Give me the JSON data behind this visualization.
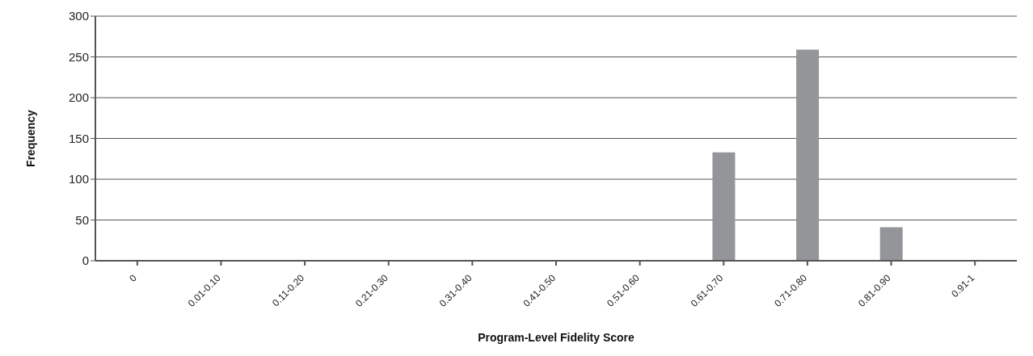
{
  "chart_data": {
    "type": "bar",
    "xlabel": "Program-Level Fidelity Score",
    "ylabel": "Frequency",
    "categories": [
      "0",
      "0.01-0.10",
      "0.11-0.20",
      "0.21-0.30",
      "0.31-0.40",
      "0.41-0.50",
      "0.51-0.60",
      "0.61-0.70",
      "0.71-0.80",
      "0.81-0.90",
      "0.91-1"
    ],
    "values": [
      0,
      0,
      0,
      0,
      0,
      0,
      0,
      133,
      259,
      41,
      0
    ],
    "color": "#939598",
    "ylim": [
      0,
      300
    ],
    "yticks": [
      0,
      50,
      100,
      150,
      200,
      250,
      300
    ],
    "grid": "y"
  }
}
